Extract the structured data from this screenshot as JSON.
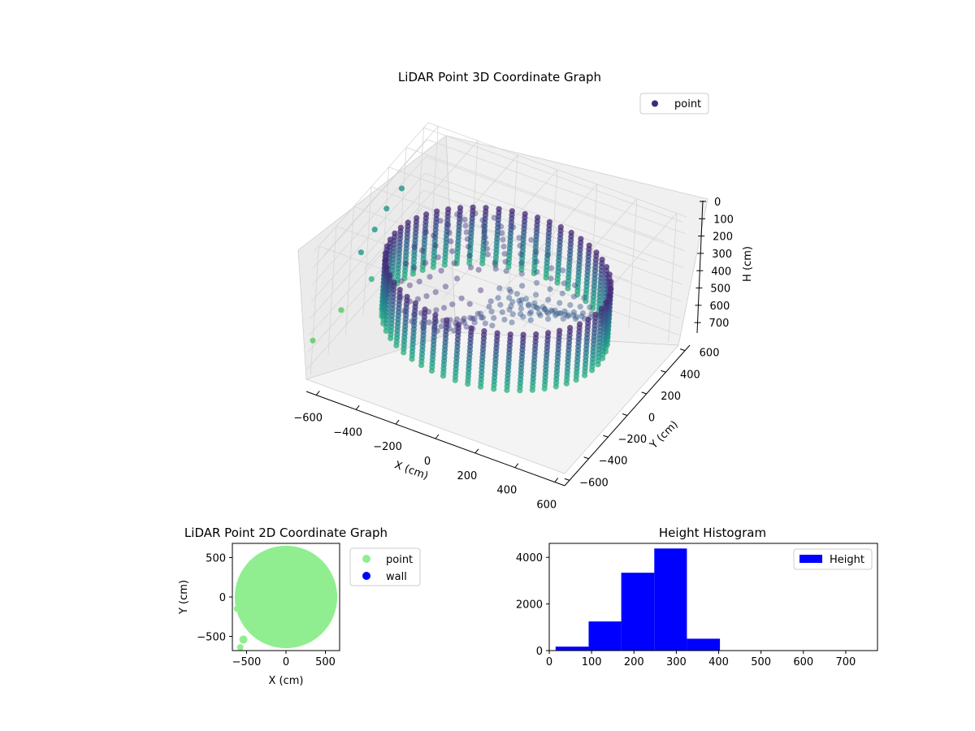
{
  "chart_data": [
    {
      "type": "scatter",
      "projection": "3d",
      "title": "LiDAR Point 3D Coordinate Graph",
      "xlabel": "X (cm)",
      "ylabel": "Y (cm)",
      "zlabel": "H (cm)",
      "x_ticks": [
        "−600",
        "−400",
        "−200",
        "0",
        "200",
        "400",
        "600"
      ],
      "y_ticks": [
        "600",
        "400",
        "200",
        "0",
        "−200",
        "−400",
        "−600"
      ],
      "z_ticks": [
        "0",
        "100",
        "200",
        "300",
        "400",
        "500",
        "600",
        "700"
      ],
      "xlim": [
        -650,
        650
      ],
      "ylim": [
        -650,
        650
      ],
      "zlim": [
        0,
        760
      ],
      "z_inverted": true,
      "legend": {
        "placement": "top-right",
        "entries": [
          "point"
        ]
      },
      "series": [
        {
          "name": "point",
          "colormap": "viridis",
          "structure": "ring of vertical point columns",
          "ring_radius": 520,
          "ring_h_range": [
            220,
            560
          ],
          "columns": 54,
          "outliers": [
            {
              "x": -640,
              "y": 350,
              "h": 210
            },
            {
              "x": -640,
              "y": 180,
              "h": 230
            },
            {
              "x": -620,
              "y": 0,
              "h": 240
            },
            {
              "x": -600,
              "y": -200,
              "h": 250
            },
            {
              "x": -560,
              "y": -150,
              "h": 420
            },
            {
              "x": -640,
              "y": -300,
              "h": 550
            },
            {
              "x": -650,
              "y": -600,
              "h": 560
            }
          ]
        }
      ],
      "grid": true
    },
    {
      "type": "scatter",
      "title": "LiDAR Point 2D Coordinate Graph",
      "xlabel": "X (cm)",
      "ylabel": "Y (cm)",
      "x_ticks": [
        "−500",
        "0",
        "500"
      ],
      "y_ticks": [
        "500",
        "0",
        "−500"
      ],
      "xlim": [
        -680,
        680
      ],
      "ylim": [
        -680,
        680
      ],
      "legend": {
        "placement": "right",
        "entries": [
          "point",
          "wall"
        ]
      },
      "series": [
        {
          "name": "point",
          "color": "#90ee90",
          "region": {
            "type": "disk",
            "cx": 0,
            "cy": 0,
            "r": 650
          }
        },
        {
          "name": "wall",
          "color": "#0000ff",
          "points": []
        }
      ]
    },
    {
      "type": "bar",
      "subtype": "histogram",
      "title": "Height Histogram",
      "xlabel": "",
      "ylabel": "",
      "x_ticks": [
        "0",
        "100",
        "200",
        "300",
        "400",
        "500",
        "600",
        "700"
      ],
      "y_ticks": [
        "0",
        "2000",
        "4000"
      ],
      "xlim": [
        0,
        775
      ],
      "ylim": [
        0,
        4600
      ],
      "legend": {
        "placement": "top-right",
        "entries": [
          "Height"
        ]
      },
      "series": [
        {
          "name": "Height",
          "color": "#0000ff",
          "bins": [
            [
              15,
              93
            ],
            [
              93,
              170
            ],
            [
              170,
              248
            ],
            [
              248,
              325
            ],
            [
              325,
              403
            ],
            [
              403,
              480
            ],
            [
              480,
              558
            ],
            [
              558,
              635
            ],
            [
              635,
              713
            ],
            [
              713,
              790
            ]
          ],
          "values": [
            170,
            1250,
            3340,
            4380,
            510,
            0,
            0,
            0,
            0,
            0
          ]
        }
      ]
    }
  ]
}
